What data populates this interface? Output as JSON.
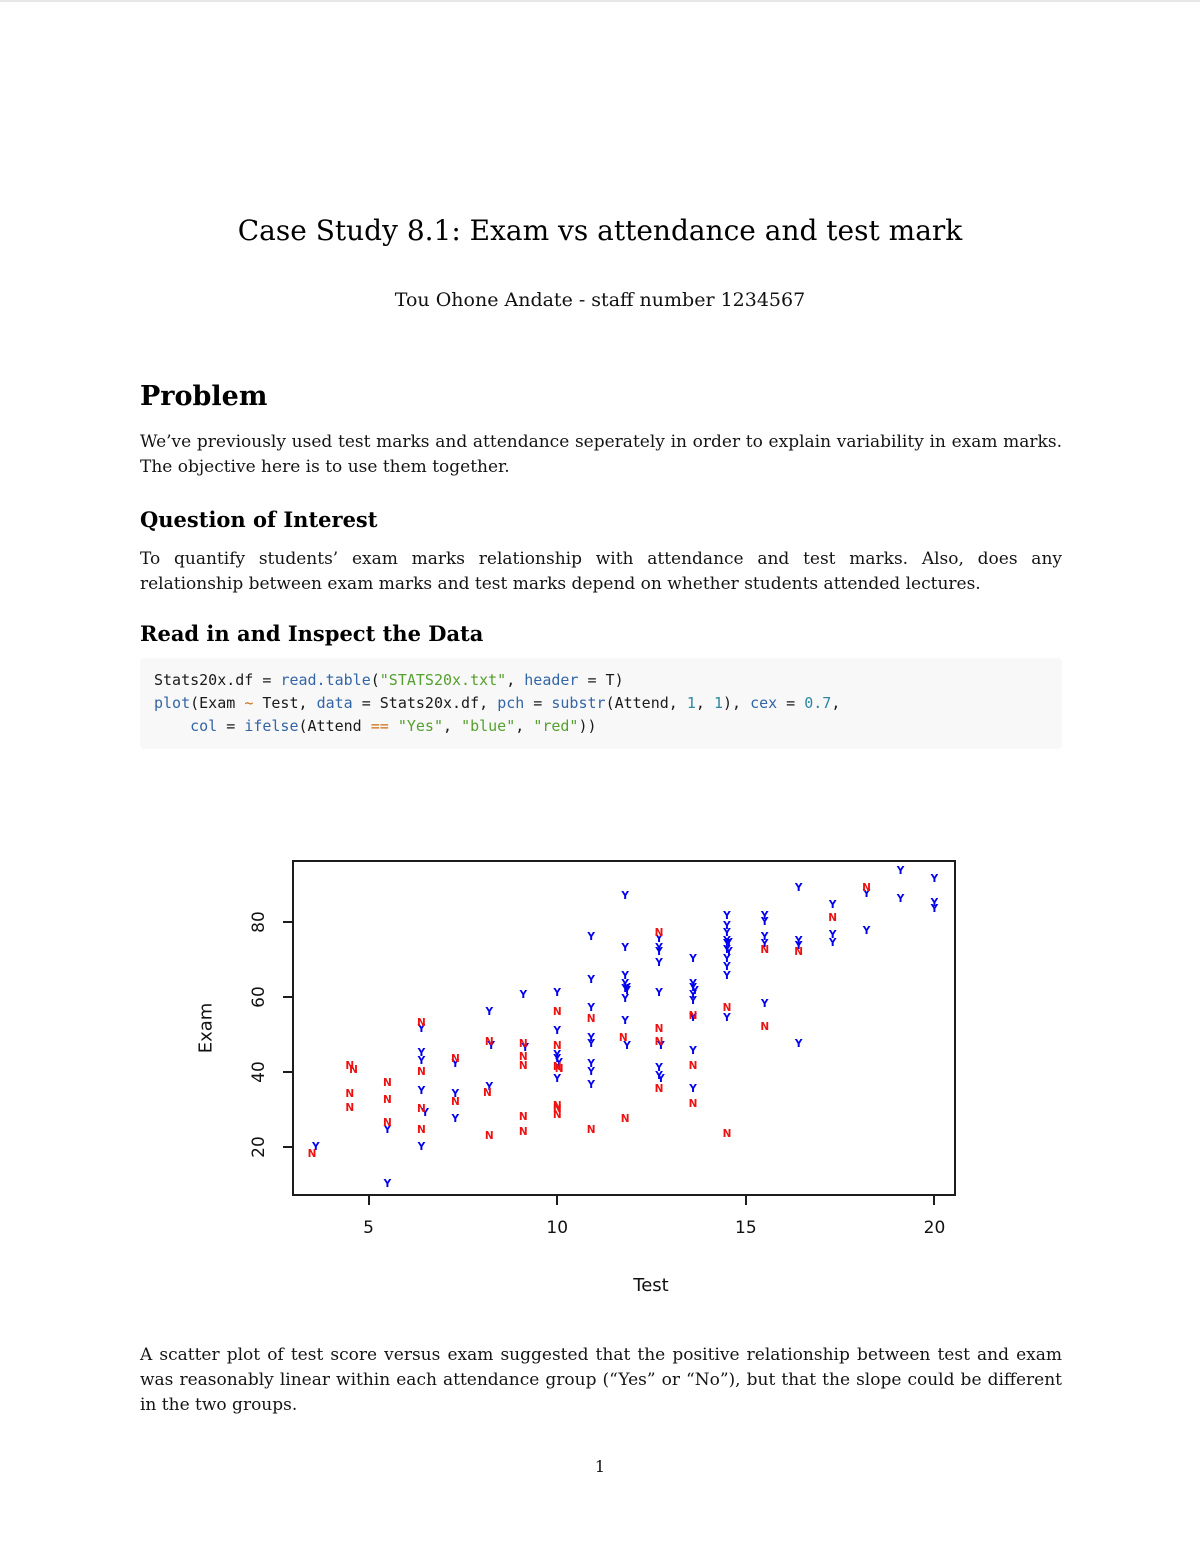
{
  "header": {
    "title": "Case Study 8.1: Exam vs attendance and test mark",
    "author": "Tou Ohone Andate - staff number 1234567"
  },
  "problem": {
    "heading": "Problem",
    "body": "We’ve previously used test marks and attendance seperately in order to explain variability in exam marks. The objective here is to use them together."
  },
  "question": {
    "heading": "Question of Interest",
    "body": "To quantify students’ exam marks relationship with attendance and test marks. Also, does any relationship between exam marks and test marks depend on whether students attended lectures."
  },
  "read_data": {
    "heading": "Read in and Inspect the Data"
  },
  "code": {
    "background": "#f8f8f8",
    "token_colors": {
      "fu": "#3465a4",
      "st": "#55a02e",
      "nu": "#2e87a1",
      "op": "#cb6d14",
      "df": "#1a1a1a"
    },
    "lines": [
      [
        {
          "t": "Stats20x.df = ",
          "c": "df"
        },
        {
          "t": "read.table",
          "c": "fu"
        },
        {
          "t": "(",
          "c": "df"
        },
        {
          "t": "\"STATS20x.txt\"",
          "c": "st"
        },
        {
          "t": ", ",
          "c": "df"
        },
        {
          "t": "header",
          "c": "fu"
        },
        {
          "t": " = T)",
          "c": "df"
        }
      ],
      [
        {
          "t": "plot",
          "c": "fu"
        },
        {
          "t": "(Exam ",
          "c": "df"
        },
        {
          "t": "~",
          "c": "op"
        },
        {
          "t": " Test, ",
          "c": "df"
        },
        {
          "t": "data",
          "c": "fu"
        },
        {
          "t": " = Stats20x.df, ",
          "c": "df"
        },
        {
          "t": "pch",
          "c": "fu"
        },
        {
          "t": " = ",
          "c": "df"
        },
        {
          "t": "substr",
          "c": "fu"
        },
        {
          "t": "(Attend, ",
          "c": "df"
        },
        {
          "t": "1",
          "c": "nu"
        },
        {
          "t": ", ",
          "c": "df"
        },
        {
          "t": "1",
          "c": "nu"
        },
        {
          "t": "), ",
          "c": "df"
        },
        {
          "t": "cex",
          "c": "fu"
        },
        {
          "t": " = ",
          "c": "df"
        },
        {
          "t": "0.7",
          "c": "nu"
        },
        {
          "t": ",",
          "c": "df"
        }
      ],
      [
        {
          "t": "    ",
          "c": "df"
        },
        {
          "t": "col",
          "c": "fu"
        },
        {
          "t": " = ",
          "c": "df"
        },
        {
          "t": "ifelse",
          "c": "fu"
        },
        {
          "t": "(Attend ",
          "c": "df"
        },
        {
          "t": "==",
          "c": "op"
        },
        {
          "t": " ",
          "c": "df"
        },
        {
          "t": "\"Yes\"",
          "c": "st"
        },
        {
          "t": ", ",
          "c": "df"
        },
        {
          "t": "\"blue\"",
          "c": "st"
        },
        {
          "t": ", ",
          "c": "df"
        },
        {
          "t": "\"red\"",
          "c": "st"
        },
        {
          "t": "))",
          "c": "df"
        }
      ]
    ]
  },
  "chart_data": {
    "type": "scatter",
    "title": "",
    "xlabel": "Test",
    "ylabel": "Exam",
    "xlim": [
      2.97,
      20.57
    ],
    "ylim": [
      6.9,
      96.5
    ],
    "xticks": [
      5,
      10,
      15,
      20
    ],
    "yticks": [
      20,
      40,
      60,
      80
    ],
    "grid": false,
    "legend": "none",
    "point_style": "letter glyphs: first character of Attend, cex 0.7",
    "series": [
      {
        "name": "Attend = Yes",
        "symbol": "Y",
        "color": "#0000ee",
        "points": [
          [
            3.6,
            20
          ],
          [
            5.5,
            24.5
          ],
          [
            5.5,
            10
          ],
          [
            6.4,
            51.5
          ],
          [
            6.4,
            45
          ],
          [
            6.4,
            43
          ],
          [
            6.4,
            35
          ],
          [
            6.5,
            29
          ],
          [
            6.4,
            20
          ],
          [
            7.3,
            42
          ],
          [
            7.3,
            34
          ],
          [
            7.3,
            27.5
          ],
          [
            8.2,
            56
          ],
          [
            8.25,
            47
          ],
          [
            8.2,
            36
          ],
          [
            9.1,
            60.5
          ],
          [
            9.15,
            46.5
          ],
          [
            10,
            61
          ],
          [
            10,
            51
          ],
          [
            10,
            44.5
          ],
          [
            10,
            43.5
          ],
          [
            10.05,
            42.5
          ],
          [
            10,
            38
          ],
          [
            10.9,
            76
          ],
          [
            10.9,
            64.5
          ],
          [
            10.9,
            57
          ],
          [
            10.9,
            49
          ],
          [
            10.9,
            47.5
          ],
          [
            10.9,
            42
          ],
          [
            10.9,
            40
          ],
          [
            10.9,
            36.5
          ],
          [
            11.8,
            87
          ],
          [
            11.8,
            73
          ],
          [
            11.8,
            65.5
          ],
          [
            11.8,
            63.5
          ],
          [
            11.85,
            62.5
          ],
          [
            11.8,
            62
          ],
          [
            11.85,
            61.5
          ],
          [
            11.8,
            59.5
          ],
          [
            11.8,
            53.5
          ],
          [
            11.85,
            47
          ],
          [
            12.7,
            75.5
          ],
          [
            12.7,
            73
          ],
          [
            12.7,
            72
          ],
          [
            12.7,
            69
          ],
          [
            12.7,
            61
          ],
          [
            12.75,
            47
          ],
          [
            12.7,
            41
          ],
          [
            12.7,
            39
          ],
          [
            12.75,
            38
          ],
          [
            13.6,
            70
          ],
          [
            13.6,
            63.5
          ],
          [
            13.6,
            62.5
          ],
          [
            13.65,
            61.5
          ],
          [
            13.6,
            60.5
          ],
          [
            13.6,
            59
          ],
          [
            13.6,
            54.5
          ],
          [
            13.6,
            45.5
          ],
          [
            13.6,
            35.5
          ],
          [
            14.5,
            81.5
          ],
          [
            14.5,
            79
          ],
          [
            14.5,
            77
          ],
          [
            14.5,
            75
          ],
          [
            14.55,
            74.5
          ],
          [
            14.5,
            74
          ],
          [
            14.5,
            72.5
          ],
          [
            14.55,
            72
          ],
          [
            14.5,
            70
          ],
          [
            14.5,
            68
          ],
          [
            14.5,
            65.5
          ],
          [
            14.5,
            54.5
          ],
          [
            15.5,
            81.5
          ],
          [
            15.5,
            80
          ],
          [
            15.5,
            76
          ],
          [
            15.5,
            74
          ],
          [
            15.5,
            58
          ],
          [
            16.4,
            89
          ],
          [
            16.4,
            75
          ],
          [
            16.4,
            73.5
          ],
          [
            16.4,
            47.5
          ],
          [
            17.3,
            84.5
          ],
          [
            17.3,
            76.5
          ],
          [
            17.3,
            74.5
          ],
          [
            18.2,
            87.5
          ],
          [
            18.2,
            77.5
          ],
          [
            19.1,
            93.5
          ],
          [
            19.1,
            86
          ],
          [
            20,
            91.5
          ],
          [
            20,
            85
          ],
          [
            20,
            83.5
          ]
        ]
      },
      {
        "name": "Attend = No",
        "symbol": "N",
        "color": "#ee1111",
        "points": [
          [
            3.5,
            18
          ],
          [
            4.5,
            41.5
          ],
          [
            4.6,
            40.5
          ],
          [
            4.5,
            34
          ],
          [
            4.5,
            30.5
          ],
          [
            5.5,
            37
          ],
          [
            5.5,
            32.5
          ],
          [
            5.5,
            26.5
          ],
          [
            6.4,
            53
          ],
          [
            6.4,
            40
          ],
          [
            6.4,
            30
          ],
          [
            6.4,
            24.5
          ],
          [
            7.3,
            43.5
          ],
          [
            7.3,
            32
          ],
          [
            8.2,
            48
          ],
          [
            8.15,
            34.5
          ],
          [
            8.2,
            23
          ],
          [
            9.1,
            47.5
          ],
          [
            9.1,
            44
          ],
          [
            9.1,
            41.5
          ],
          [
            9.1,
            28
          ],
          [
            9.1,
            24
          ],
          [
            10,
            56
          ],
          [
            10,
            47
          ],
          [
            10,
            41.3
          ],
          [
            10.05,
            40.8
          ],
          [
            10,
            31
          ],
          [
            10,
            30
          ],
          [
            10,
            28.5
          ],
          [
            10.9,
            54
          ],
          [
            10.9,
            24.5
          ],
          [
            11.75,
            49
          ],
          [
            11.8,
            27.5
          ],
          [
            12.7,
            77
          ],
          [
            12.7,
            51.5
          ],
          [
            12.7,
            48
          ],
          [
            12.7,
            35.5
          ],
          [
            13.6,
            55
          ],
          [
            13.6,
            41.5
          ],
          [
            13.6,
            31.5
          ],
          [
            14.5,
            57
          ],
          [
            14.5,
            23.5
          ],
          [
            15.5,
            72.5
          ],
          [
            15.5,
            52
          ],
          [
            16.4,
            72
          ],
          [
            17.3,
            81
          ],
          [
            18.2,
            89
          ]
        ]
      }
    ]
  },
  "closing": {
    "body": "A scatter plot of test score versus exam suggested that the positive relationship between test and exam was reasonably linear within each attendance group (“Yes” or “No”), but that the slope could be different in the two groups."
  },
  "page": {
    "number": "1"
  }
}
